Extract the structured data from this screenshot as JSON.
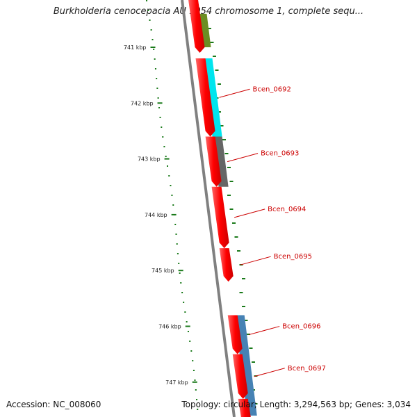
{
  "title": "Burkholderia cenocepacia AU 1054 chromosome 1, complete sequ...",
  "footer": {
    "accession": "Accession: NC_008060",
    "summary": "Topology: circular; Length: 3,294,563 bp; Genes: 3,034"
  },
  "ticks": [
    {
      "kb": 741,
      "label": "741 kbp"
    },
    {
      "kb": 742,
      "label": "742 kbp"
    },
    {
      "kb": 743,
      "label": "743 kbp"
    },
    {
      "kb": 744,
      "label": "744 kbp"
    },
    {
      "kb": 745,
      "label": "745 kbp"
    },
    {
      "kb": 746,
      "label": "746 kbp"
    },
    {
      "kb": 747,
      "label": "747 kbp"
    }
  ],
  "genes": [
    {
      "name": "Bcen_0692",
      "start_kb": 741.2,
      "end_kb": 742.6
    },
    {
      "name": "Bcen_0693",
      "start_kb": 742.6,
      "end_kb": 743.5
    },
    {
      "name": "Bcen_0694",
      "start_kb": 743.5,
      "end_kb": 744.6
    },
    {
      "name": "Bcen_0695",
      "start_kb": 744.6,
      "end_kb": 745.2
    },
    {
      "name": "Bcen_0696",
      "start_kb": 745.8,
      "end_kb": 746.5
    },
    {
      "name": "Bcen_0697",
      "start_kb": 746.5,
      "end_kb": 747.3
    }
  ],
  "cog_segments": [
    {
      "start_kb": 740.4,
      "end_kb": 741.0,
      "color": "#6b8e23"
    },
    {
      "start_kb": 741.2,
      "end_kb": 742.6,
      "color": "#00e5ee"
    },
    {
      "start_kb": 742.6,
      "end_kb": 743.5,
      "color": "#666666"
    },
    {
      "start_kb": 745.8,
      "end_kb": 747.6,
      "color": "#4682b4"
    }
  ],
  "colors": {
    "cds": "#ff0000",
    "backbone": "#808080",
    "gc_dots": "#1a7a1a",
    "label": "#cc0000"
  }
}
